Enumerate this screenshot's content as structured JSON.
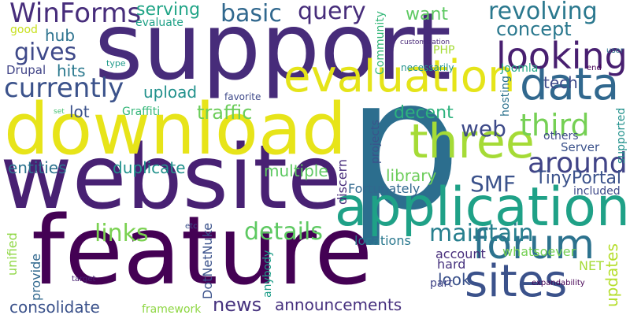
{
  "words": [
    {
      "text": "p",
      "color": "#2c6e8e",
      "rotate": false
    },
    {
      "text": "support",
      "color": "#472c7a",
      "rotate": false
    },
    {
      "text": "feature",
      "color": "#440154",
      "rotate": false
    },
    {
      "text": "website",
      "color": "#482173",
      "rotate": false
    },
    {
      "text": "download",
      "color": "#e7e419",
      "rotate": false
    },
    {
      "text": "application",
      "color": "#1fa187",
      "rotate": false
    },
    {
      "text": "evaluation",
      "color": "#e5e419",
      "rotate": false
    },
    {
      "text": "three",
      "color": "#a5db36",
      "rotate": false
    },
    {
      "text": "data",
      "color": "#31688e",
      "rotate": false
    },
    {
      "text": "forum",
      "color": "#2c728e",
      "rotate": false
    },
    {
      "text": "sites",
      "color": "#3b528b",
      "rotate": false
    },
    {
      "text": "WinForms",
      "color": "#472d7b",
      "rotate": false
    },
    {
      "text": "revolving",
      "color": "#2a788e",
      "rotate": false
    },
    {
      "text": "looking",
      "color": "#481f70",
      "rotate": false
    },
    {
      "text": "currently",
      "color": "#3b528b",
      "rotate": false
    },
    {
      "text": "maintain",
      "color": "#277f8e",
      "rotate": false
    },
    {
      "text": "query",
      "color": "#472d7b",
      "rotate": false
    },
    {
      "text": "basic",
      "color": "#31688e",
      "rotate": false
    },
    {
      "text": "concept",
      "color": "#2a788e",
      "rotate": false
    },
    {
      "text": "gives",
      "color": "#3e4989",
      "rotate": false
    },
    {
      "text": "third",
      "color": "#75d054",
      "rotate": false
    },
    {
      "text": "around",
      "color": "#414487",
      "rotate": false
    },
    {
      "text": "web",
      "color": "#3e4a89",
      "rotate": false
    },
    {
      "text": "details",
      "color": "#5ec962",
      "rotate": false
    },
    {
      "text": "links",
      "color": "#7ad151",
      "rotate": false
    },
    {
      "text": "SMF",
      "color": "#3b528b",
      "rotate": false
    },
    {
      "text": "TinyPortal",
      "color": "#3b528b",
      "rotate": false
    },
    {
      "text": "news",
      "color": "#46327e",
      "rotate": false
    },
    {
      "text": "announcements",
      "color": "#46307e",
      "rotate": false
    },
    {
      "text": "consolidate",
      "color": "#3b528b",
      "rotate": false
    },
    {
      "text": "serving",
      "color": "#20a486",
      "rotate": false
    },
    {
      "text": "want",
      "color": "#5ec962",
      "rotate": false
    },
    {
      "text": "hub",
      "color": "#2c728e",
      "rotate": false
    },
    {
      "text": "hits",
      "color": "#2a788e",
      "rotate": false
    },
    {
      "text": "tech",
      "color": "#3e4a89",
      "rotate": false
    },
    {
      "text": "decent",
      "color": "#2db27d",
      "rotate": false
    },
    {
      "text": "traffic",
      "color": "#6ccd5a",
      "rotate": false
    },
    {
      "text": "upload",
      "color": "#21918c",
      "rotate": false
    },
    {
      "text": "lot",
      "color": "#3b528b",
      "rotate": false
    },
    {
      "text": "entities",
      "color": "#2c728e",
      "rotate": false
    },
    {
      "text": "duplicate",
      "color": "#21918c",
      "rotate": false
    },
    {
      "text": "multiple",
      "color": "#5ec962",
      "rotate": false
    },
    {
      "text": "library",
      "color": "#6ccd5a",
      "rotate": false
    },
    {
      "text": "Fortunately",
      "color": "#31688e",
      "rotate": false
    },
    {
      "text": "locations",
      "color": "#2a788e",
      "rotate": false
    },
    {
      "text": "look",
      "color": "#3b528b",
      "rotate": false
    },
    {
      "text": "account",
      "color": "#472d7b",
      "rotate": false
    },
    {
      "text": "whatsoever",
      "color": "#75d054",
      "rotate": false
    },
    {
      "text": "part",
      "color": "#414487",
      "rotate": false
    },
    {
      "text": "hard",
      "color": "#46327e",
      "rotate": false
    },
    {
      "text": "framework",
      "color": "#8fd744",
      "rotate": false
    },
    {
      "text": "evaluate",
      "color": "#1fa187",
      "rotate": false
    },
    {
      "text": "good",
      "color": "#c8e020",
      "rotate": false
    },
    {
      "text": "Drupal",
      "color": "#414487",
      "rotate": false
    },
    {
      "text": "Joomla",
      "color": "#22a785",
      "rotate": false
    },
    {
      "text": "PHP",
      "color": "#a5db36",
      "rotate": false
    },
    {
      "text": "Server",
      "color": "#3b528b",
      "rotate": false
    },
    {
      "text": "included",
      "color": "#3e4989",
      "rotate": false
    },
    {
      "text": "others",
      "color": "#3e4989",
      "rotate": false
    },
    {
      "text": "Graffiti",
      "color": "#35b779",
      "rotate": false
    },
    {
      "text": "favorite",
      "color": "#3e4989",
      "rotate": false
    },
    {
      "text": "necessarily",
      "color": "#21918c",
      "rotate": false
    },
    {
      "text": "customization",
      "color": "#482878",
      "rotate": false
    },
    {
      "text": "type",
      "color": "#1f9a8a",
      "rotate": false
    },
    {
      "text": "user",
      "color": "#2c728e",
      "rotate": false
    },
    {
      "text": "end",
      "color": "#440154",
      "rotate": false
    },
    {
      "text": "set",
      "color": "#44bf70",
      "rotate": false
    },
    {
      "text": "etc",
      "color": "#3b528b",
      "rotate": false
    },
    {
      "text": "NET",
      "color": "#a5db36",
      "rotate": false
    },
    {
      "text": "target",
      "color": "#482173",
      "rotate": false
    },
    {
      "text": "expandability",
      "color": "#440154",
      "rotate": false
    },
    {
      "text": "Community",
      "color": "#35b779",
      "rotate": true
    },
    {
      "text": "hosting",
      "color": "#2c728e",
      "rotate": true
    },
    {
      "text": "supported",
      "color": "#21918c",
      "rotate": true
    },
    {
      "text": "projects",
      "color": "#3b528b",
      "rotate": true
    },
    {
      "text": "discern",
      "color": "#472d7b",
      "rotate": true
    },
    {
      "text": "unified",
      "color": "#8fd744",
      "rotate": true
    },
    {
      "text": "provide",
      "color": "#31688e",
      "rotate": true
    },
    {
      "text": "DotNetNuke",
      "color": "#3b528b",
      "rotate": true
    },
    {
      "text": "anybody",
      "color": "#1f9e89",
      "rotate": true
    },
    {
      "text": "updates",
      "color": "#b5de2b",
      "rotate": true
    }
  ]
}
